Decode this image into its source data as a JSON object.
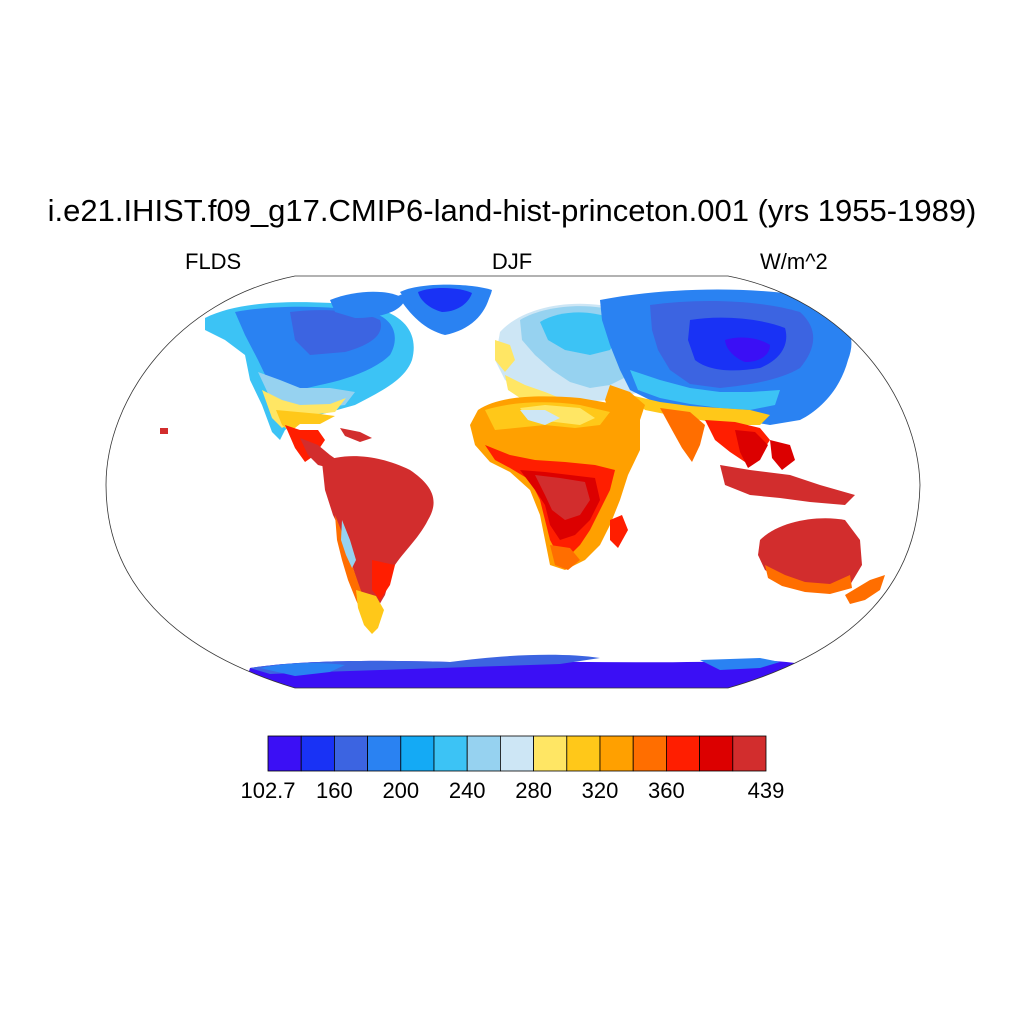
{
  "header": {
    "title": "i.e21.IHIST.f09_g17.CMIP6-land-hist-princeton.001 (yrs 1955-1989)",
    "variable": "FLDS",
    "season": "DJF",
    "units": "W/m^2"
  },
  "map": {
    "projection": "robinson",
    "continent_outlines": true,
    "ocean_fill": "#ffffff"
  },
  "colorbar": {
    "colors": [
      "#3b0ff5",
      "#1932f5",
      "#3c64e1",
      "#2a82f2",
      "#14aaf5",
      "#3cc3f5",
      "#96d2f0",
      "#cde6f5",
      "#ffe664",
      "#ffc819",
      "#ffa000",
      "#ff6e00",
      "#ff1e00",
      "#dc0000",
      "#d22d2d"
    ],
    "tick_labels": [
      {
        "text": "102.7",
        "boundary": 0
      },
      {
        "text": "160",
        "boundary": 2
      },
      {
        "text": "200",
        "boundary": 4
      },
      {
        "text": "240",
        "boundary": 6
      },
      {
        "text": "280",
        "boundary": 8
      },
      {
        "text": "320",
        "boundary": 10
      },
      {
        "text": "360",
        "boundary": 12
      },
      {
        "text": "439",
        "boundary": 15
      }
    ]
  }
}
